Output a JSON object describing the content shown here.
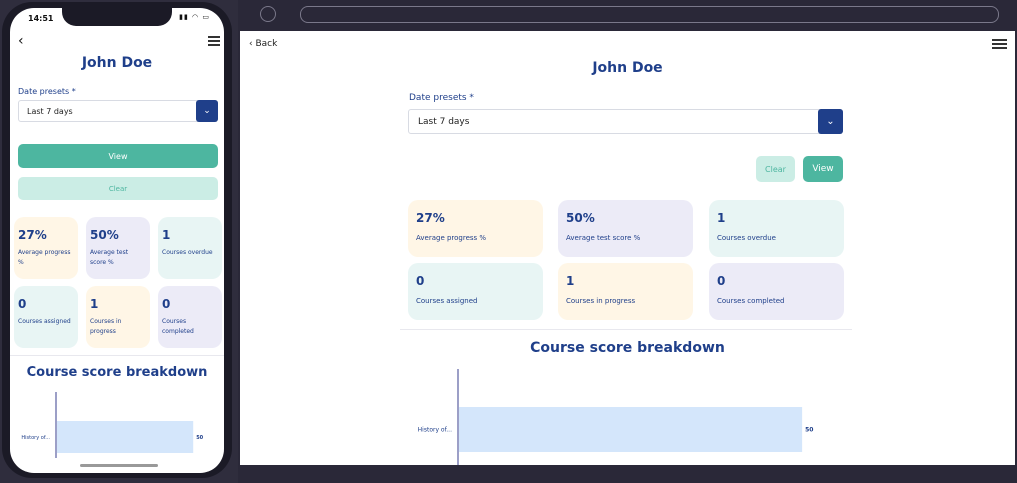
{
  "colors": {
    "primary": "#1f3f8a",
    "teal": "#4db6a0",
    "teal_light": "#cbede5",
    "card_peach": "#fff6e6",
    "card_lavender": "#ecebf7",
    "card_mint": "#e8f5f4",
    "bar": "#d4e6fb"
  },
  "phone": {
    "status_time": "14:51",
    "status_icons": "signal-wifi-battery"
  },
  "page": {
    "title": "John Doe",
    "back_label": "Back"
  },
  "filters": {
    "date_label": "Date presets *",
    "date_value": "Last 7 days",
    "view_label": "View",
    "clear_label": "Clear"
  },
  "stats": [
    {
      "value": "27%",
      "label": "Average progress %"
    },
    {
      "value": "50%",
      "label": "Average test score %"
    },
    {
      "value": "1",
      "label": "Courses overdue"
    },
    {
      "value": "0",
      "label": "Courses assigned"
    },
    {
      "value": "1",
      "label": "Courses in progress"
    },
    {
      "value": "0",
      "label": "Courses completed"
    }
  ],
  "chart_data": {
    "type": "bar",
    "title": "Course score breakdown",
    "orientation": "horizontal",
    "categories": [
      "History of..."
    ],
    "values": [
      50
    ],
    "xlim": [
      0,
      58
    ]
  }
}
